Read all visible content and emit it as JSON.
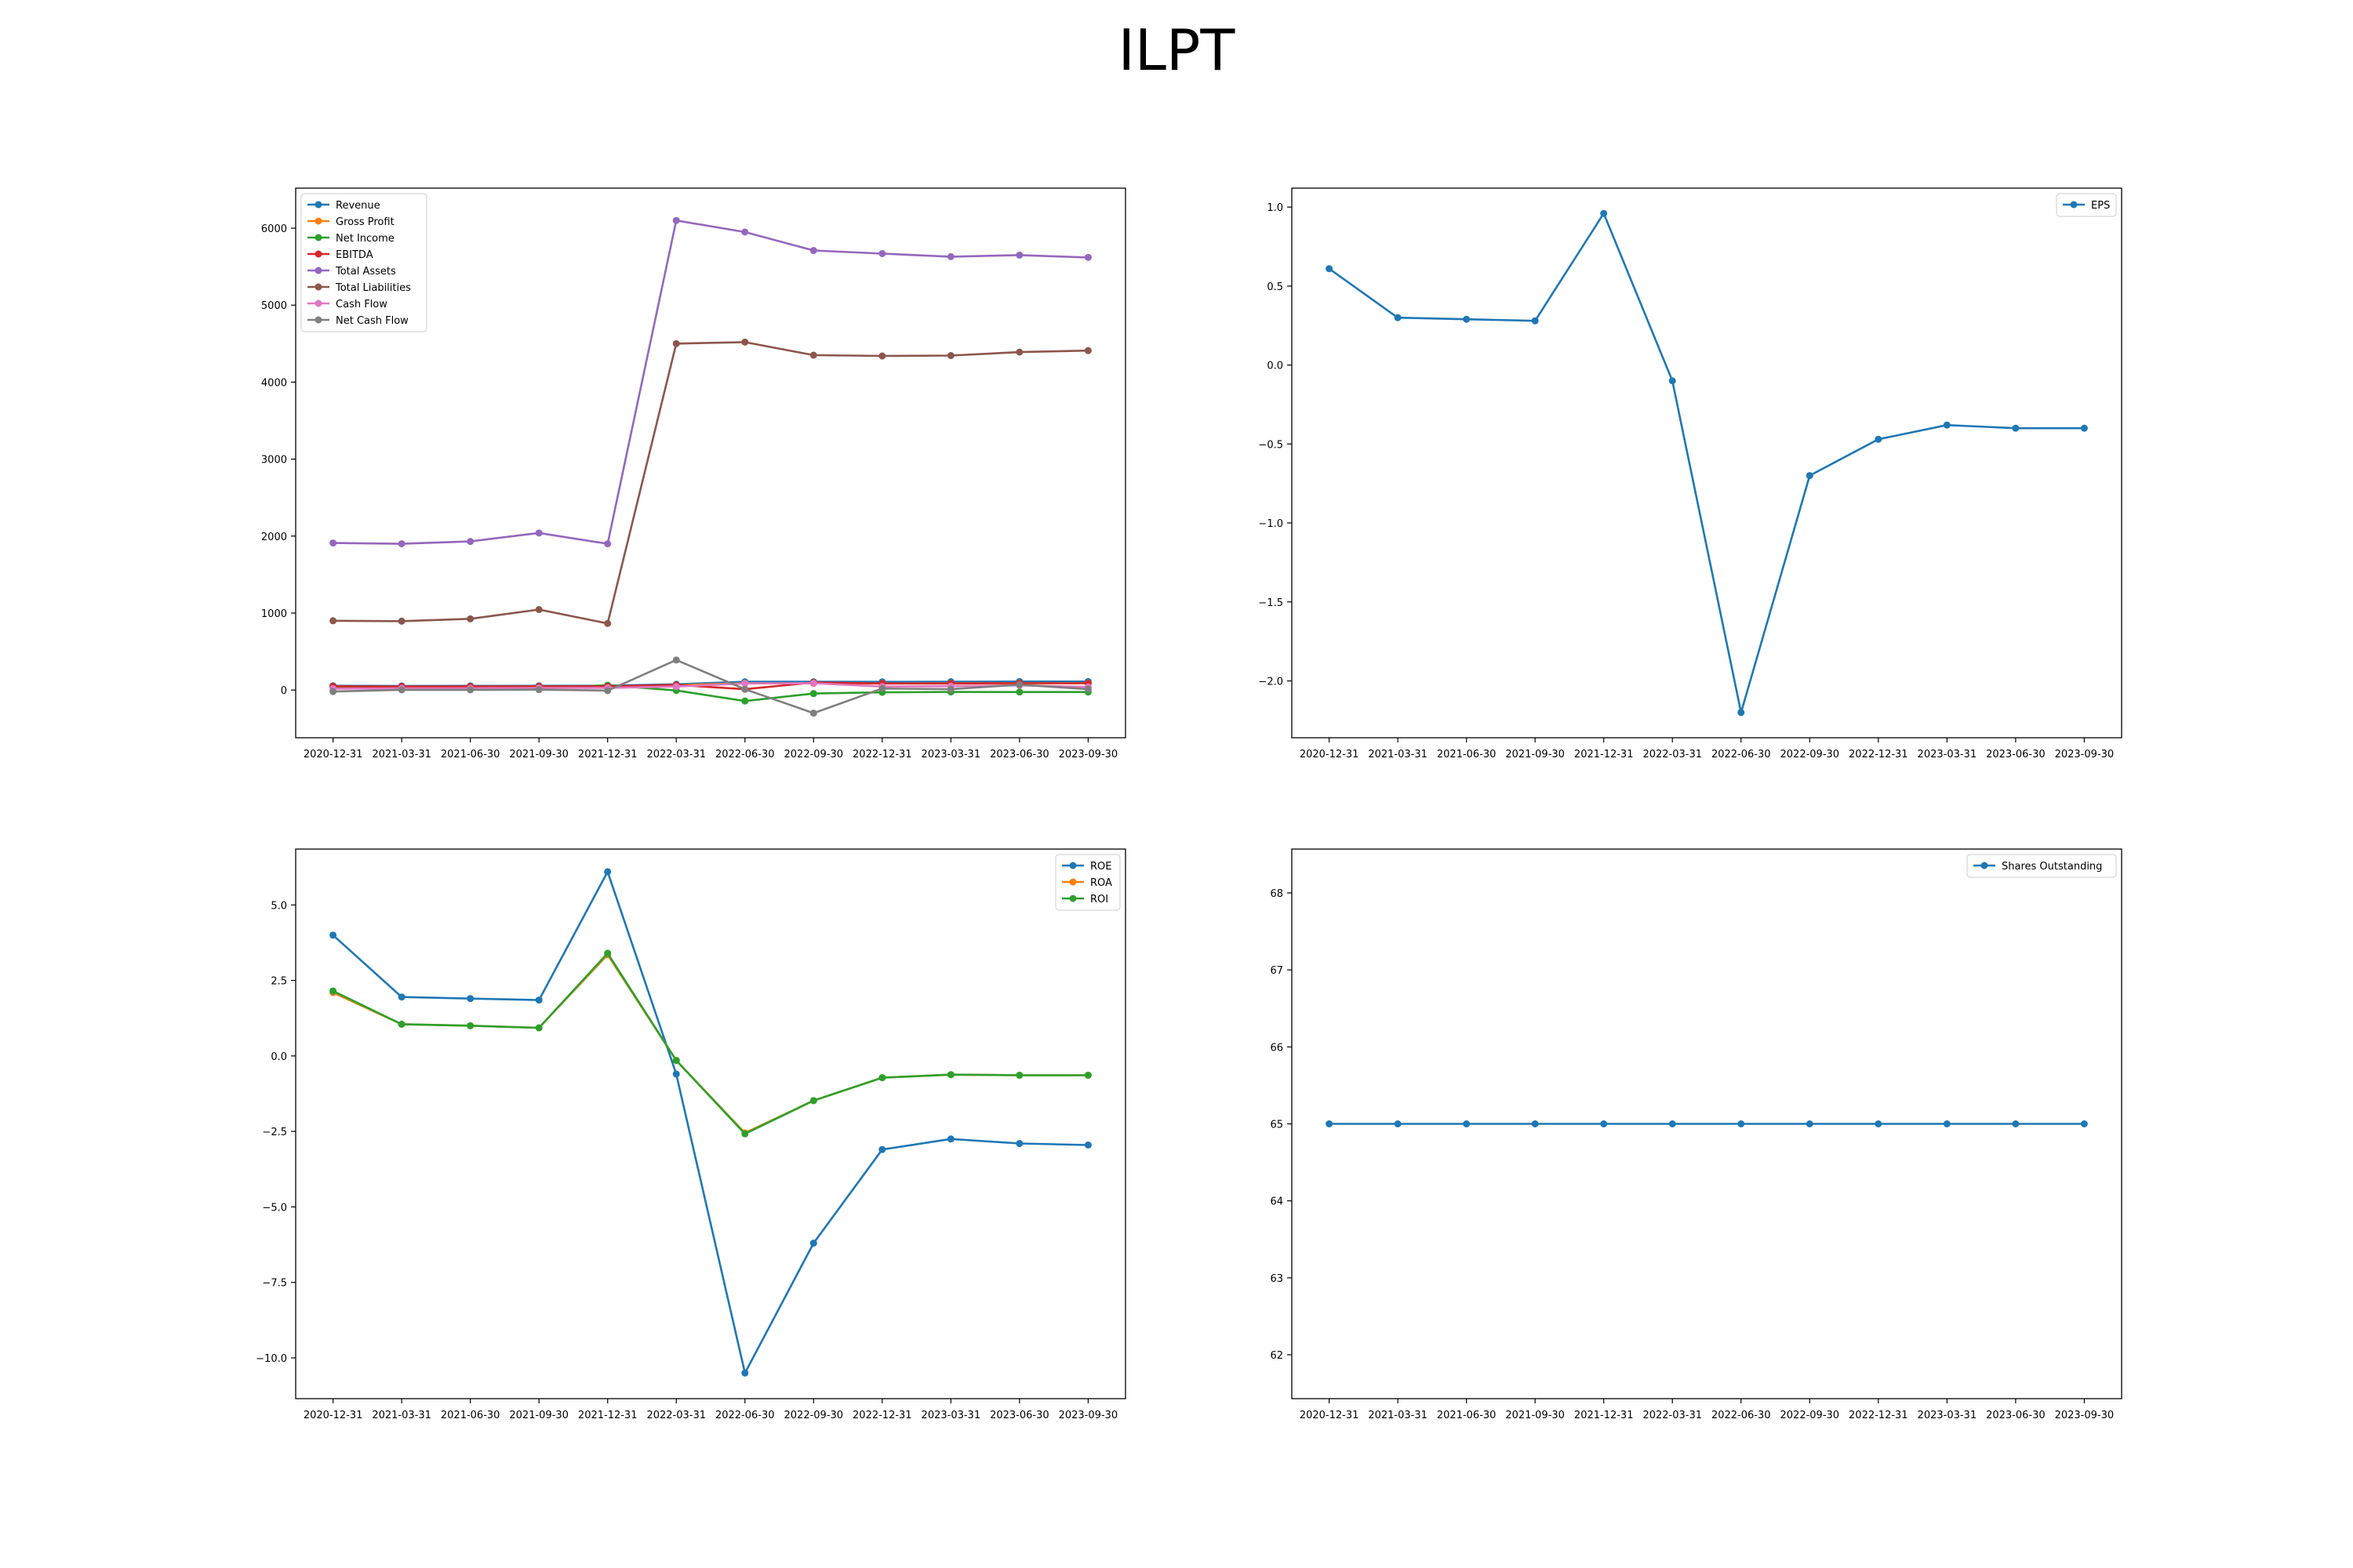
{
  "figure": {
    "title": "ILPT"
  },
  "chart_data": [
    {
      "type": "line",
      "title": "",
      "xlabel": "",
      "ylabel": "",
      "categories": [
        "2020-12-31",
        "2021-03-31",
        "2021-06-30",
        "2021-09-30",
        "2021-12-31",
        "2022-03-31",
        "2022-06-30",
        "2022-09-30",
        "2022-12-31",
        "2023-03-31",
        "2023-06-30",
        "2023-09-30"
      ],
      "ylim": [
        -620,
        6520
      ],
      "yticks": [
        0,
        1000,
        2000,
        3000,
        4000,
        5000,
        6000
      ],
      "ytick_labels": [
        "0",
        "1000",
        "2000",
        "3000",
        "4000",
        "5000",
        "6000"
      ],
      "legend": "top-left",
      "grid": false,
      "series": [
        {
          "name": "Revenue",
          "color": "#1f77b4",
          "values": [
            55,
            53,
            54,
            55,
            56,
            75,
            107,
            107,
            106,
            108,
            110,
            110
          ]
        },
        {
          "name": "Gross Profit",
          "color": "#ff7f0e",
          "values": [
            45,
            43,
            44,
            46,
            44,
            62,
            88,
            86,
            85,
            87,
            88,
            88
          ]
        },
        {
          "name": "Net Income",
          "color": "#2ca02c",
          "values": [
            40,
            20,
            19,
            18,
            63,
            -6,
            -143,
            -46,
            -30,
            -25,
            -26,
            -26
          ]
        },
        {
          "name": "EBITDA",
          "color": "#d62728",
          "values": [
            48,
            45,
            46,
            47,
            48,
            66,
            10,
            98,
            85,
            85,
            88,
            88
          ]
        },
        {
          "name": "Total Assets",
          "color": "#9467bd",
          "values": [
            1910,
            1900,
            1930,
            2040,
            1900,
            6100,
            5950,
            5710,
            5670,
            5630,
            5650,
            5620
          ]
        },
        {
          "name": "Total Liabilities",
          "color": "#8c564b",
          "values": [
            900,
            895,
            925,
            1045,
            865,
            4500,
            4520,
            4350,
            4340,
            4345,
            4390,
            4410
          ]
        },
        {
          "name": "Cash Flow",
          "color": "#e377c2",
          "values": [
            18,
            22,
            23,
            27,
            28,
            45,
            85,
            88,
            45,
            50,
            60,
            40
          ]
        },
        {
          "name": "Net Cash Flow",
          "color": "#7f7f7f",
          "values": [
            -20,
            2,
            2,
            5,
            -8,
            390,
            10,
            -300,
            20,
            10,
            70,
            10
          ]
        }
      ]
    },
    {
      "type": "line",
      "title": "",
      "xlabel": "",
      "ylabel": "",
      "categories": [
        "2020-12-31",
        "2021-03-31",
        "2021-06-30",
        "2021-09-30",
        "2021-12-31",
        "2022-03-31",
        "2022-06-30",
        "2022-09-30",
        "2022-12-31",
        "2023-03-31",
        "2023-06-30",
        "2023-09-30"
      ],
      "ylim": [
        -2.36,
        1.12
      ],
      "yticks": [
        -2.0,
        -1.5,
        -1.0,
        -0.5,
        0.0,
        0.5,
        1.0
      ],
      "ytick_labels": [
        "−2.0",
        "−1.5",
        "−1.0",
        "−0.5",
        "0.0",
        "0.5",
        "1.0"
      ],
      "legend": "top-right",
      "grid": false,
      "series": [
        {
          "name": "EPS",
          "color": "#1f77b4",
          "values": [
            0.61,
            0.3,
            0.29,
            0.28,
            0.96,
            -0.1,
            -2.2,
            -0.7,
            -0.47,
            -0.38,
            -0.4,
            -0.4
          ]
        }
      ]
    },
    {
      "type": "line",
      "title": "",
      "xlabel": "",
      "ylabel": "",
      "categories": [
        "2020-12-31",
        "2021-03-31",
        "2021-06-30",
        "2021-09-30",
        "2021-12-31",
        "2022-03-31",
        "2022-06-30",
        "2022-09-30",
        "2022-12-31",
        "2023-03-31",
        "2023-06-30",
        "2023-09-30"
      ],
      "ylim": [
        -11.35,
        6.85
      ],
      "yticks": [
        -10.0,
        -7.5,
        -5.0,
        -2.5,
        0.0,
        2.5,
        5.0
      ],
      "ytick_labels": [
        "−10.0",
        "−7.5",
        "−5.0",
        "−2.5",
        "0.0",
        "2.5",
        "5.0"
      ],
      "legend": "top-right",
      "grid": false,
      "series": [
        {
          "name": "ROE",
          "color": "#1f77b4",
          "values": [
            4.0,
            1.95,
            1.9,
            1.85,
            6.1,
            -0.6,
            -10.5,
            -6.2,
            -3.1,
            -2.75,
            -2.9,
            -2.95
          ]
        },
        {
          "name": "ROA",
          "color": "#ff7f0e",
          "values": [
            2.1,
            1.05,
            1.0,
            0.93,
            3.35,
            -0.15,
            -2.55,
            -1.48,
            -0.72,
            -0.62,
            -0.64,
            -0.64
          ]
        },
        {
          "name": "ROI",
          "color": "#2ca02c",
          "values": [
            2.15,
            1.05,
            1.0,
            0.93,
            3.4,
            -0.15,
            -2.58,
            -1.48,
            -0.72,
            -0.62,
            -0.64,
            -0.64
          ]
        }
      ]
    },
    {
      "type": "line",
      "title": "",
      "xlabel": "",
      "ylabel": "",
      "categories": [
        "2020-12-31",
        "2021-03-31",
        "2021-06-30",
        "2021-09-30",
        "2021-12-31",
        "2022-03-31",
        "2022-06-30",
        "2022-09-30",
        "2022-12-31",
        "2023-03-31",
        "2023-06-30",
        "2023-09-30"
      ],
      "ylim": [
        61.43,
        68.57
      ],
      "yticks": [
        62,
        63,
        64,
        65,
        66,
        67,
        68
      ],
      "ytick_labels": [
        "62",
        "63",
        "64",
        "65",
        "66",
        "67",
        "68"
      ],
      "legend": "top-right",
      "grid": false,
      "series": [
        {
          "name": "Shares Outstanding",
          "color": "#1f77b4",
          "values": [
            65,
            65,
            65,
            65,
            65,
            65,
            65,
            65,
            65,
            65,
            65,
            65
          ]
        }
      ]
    }
  ]
}
